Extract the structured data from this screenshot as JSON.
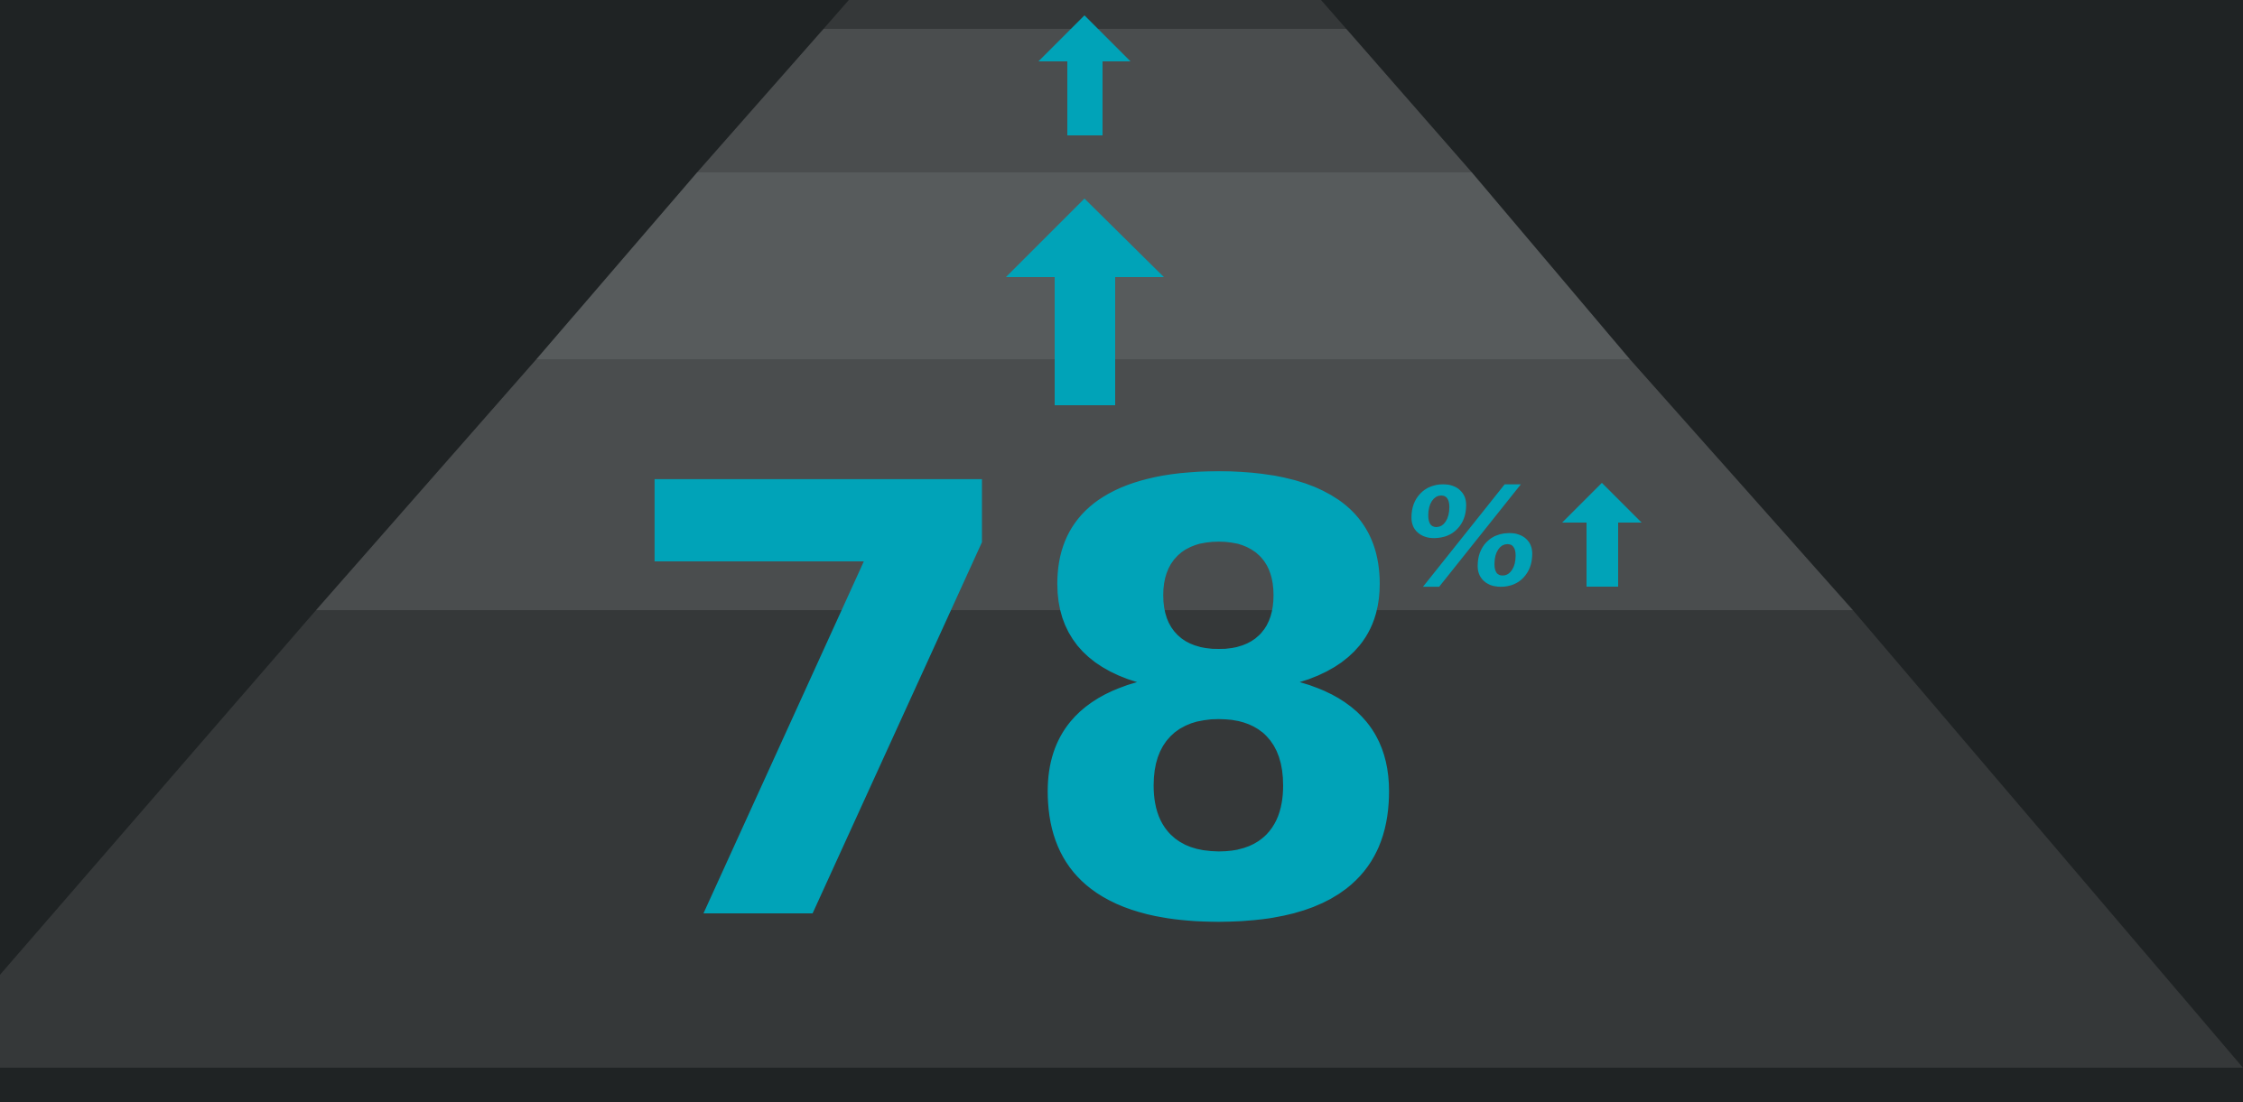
{
  "stat": {
    "value": "78",
    "unit": "%"
  },
  "icons": {
    "arrows": [
      "arrow-up-icon",
      "arrow-up-icon",
      "arrow-up-icon"
    ]
  },
  "colors": {
    "background": "#1f2324",
    "accent": "#00a3b8",
    "road_band_1": "#353839",
    "road_band_2": "#4a4d4e",
    "road_band_3": "#575b5c",
    "road_band_4": "#4a4d4e",
    "road_band_5": "#353839"
  }
}
